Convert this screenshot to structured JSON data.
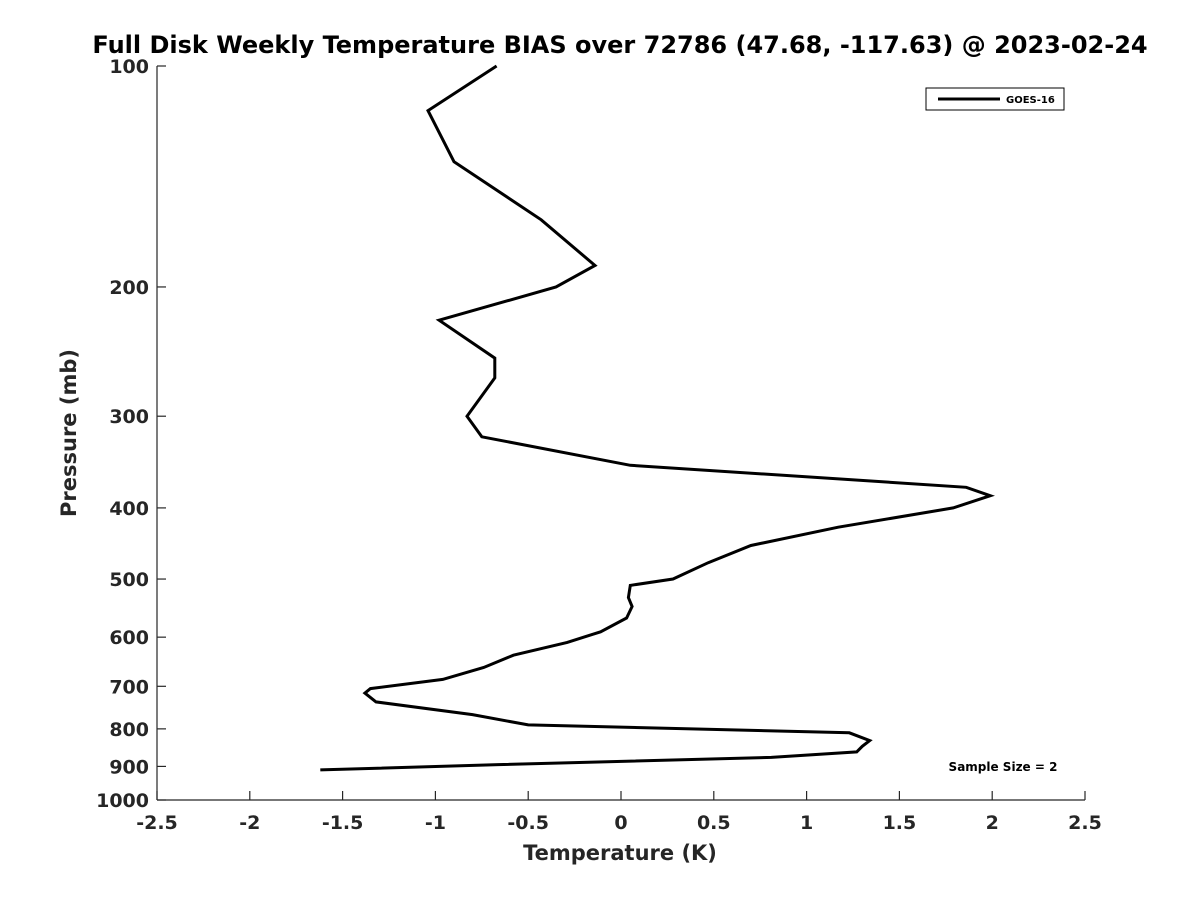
{
  "chart_data": {
    "type": "line",
    "title": "Full Disk Weekly Temperature BIAS over 72786 (47.68, -117.63) @ 2023-02-24",
    "xlabel": "Temperature (K)",
    "ylabel": "Pressure (mb)",
    "xlim": [
      -2.5,
      2.5
    ],
    "ylim": [
      100,
      1000
    ],
    "yscale": "log",
    "yreversed": true,
    "xticks": [
      -2.5,
      -2,
      -1.5,
      -1,
      -0.5,
      0,
      0.5,
      1,
      1.5,
      2,
      2.5
    ],
    "xtick_labels": [
      "-2.5",
      "-2",
      "-1.5",
      "-1",
      "-0.5",
      "0",
      "0.5",
      "1",
      "1.5",
      "2",
      "2.5"
    ],
    "yticks": [
      100,
      200,
      300,
      400,
      500,
      600,
      700,
      800,
      900,
      1000
    ],
    "ytick_labels": [
      "100",
      "200",
      "300",
      "400",
      "500",
      "600",
      "700",
      "800",
      "900",
      "1000"
    ],
    "grid": false,
    "legend": {
      "position": "top-right",
      "entries": [
        "GOES-16"
      ]
    },
    "annotation": "Sample Size = 2",
    "series": [
      {
        "name": "GOES-16",
        "color": "#000000",
        "x": [
          -0.67,
          -1.04,
          -0.9,
          -0.43,
          -0.14,
          -0.35,
          -0.98,
          -0.68,
          -0.68,
          -0.83,
          -0.75,
          0.05,
          1.86,
          1.99,
          1.79,
          1.17,
          0.7,
          0.47,
          0.28,
          0.05,
          0.04,
          0.06,
          0.03,
          -0.11,
          -0.29,
          -0.58,
          -0.74,
          -0.96,
          -1.35,
          -1.38,
          -1.32,
          -0.8,
          -0.5,
          1.23,
          1.34,
          1.3,
          1.27,
          0.81,
          -0.66,
          -1.62
        ],
        "y": [
          100,
          115,
          135,
          162,
          187,
          200,
          222,
          250,
          266,
          300,
          320,
          350,
          375,
          385,
          400,
          425,
          450,
          475,
          500,
          510,
          530,
          545,
          565,
          590,
          610,
          635,
          660,
          685,
          705,
          715,
          735,
          765,
          790,
          810,
          830,
          845,
          860,
          875,
          895,
          910
        ]
      }
    ]
  }
}
